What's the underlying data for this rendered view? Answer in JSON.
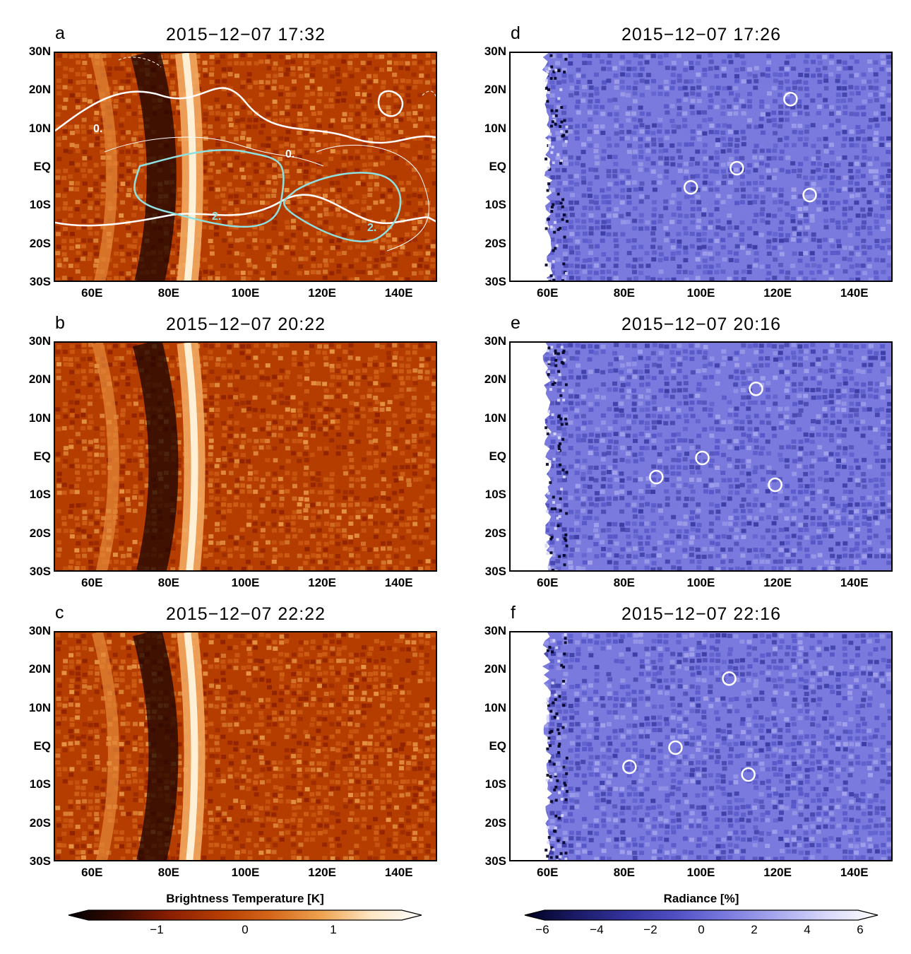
{
  "panels": [
    {
      "letter": "a",
      "title": "2015−12−07  17:32",
      "kind": "bt"
    },
    {
      "letter": "b",
      "title": "2015−12−07  20:22",
      "kind": "bt"
    },
    {
      "letter": "c",
      "title": "2015−12−07  22:22",
      "kind": "bt"
    },
    {
      "letter": "d",
      "title": "2015−12−07  17:26",
      "kind": "rad"
    },
    {
      "letter": "e",
      "title": "2015−12−07  20:16",
      "kind": "rad"
    },
    {
      "letter": "f",
      "title": "2015−12−07  22:16",
      "kind": "rad"
    }
  ],
  "yticks": [
    "30N",
    "20N",
    "10N",
    "EQ",
    "10S",
    "20S",
    "30S"
  ],
  "xticks": [
    "60E",
    "80E",
    "100E",
    "120E",
    "140E"
  ],
  "contour_labels": [
    "0.",
    "0.",
    "2.",
    "2."
  ],
  "colorbar_bt": {
    "label": "Brightness Temperature [K]",
    "ticks": [
      "−1",
      "0",
      "1"
    ],
    "colors": [
      "#000000",
      "#3a0a00",
      "#8a1e00",
      "#b53d00",
      "#d4661a",
      "#eea24f",
      "#fde6c4",
      "#ffffff"
    ]
  },
  "colorbar_rad": {
    "label": "Radiance [%]",
    "ticks": [
      "−6",
      "−4",
      "−2",
      "0",
      "2",
      "4",
      "6"
    ],
    "colors": [
      "#000020",
      "#1a1a66",
      "#33339e",
      "#5050c4",
      "#7a7ade",
      "#a8a8ee",
      "#d8d8fa",
      "#ffffff"
    ]
  },
  "colors": {
    "contour_white": "#ffffff",
    "contour_cyan": "#8fe0e0"
  }
}
